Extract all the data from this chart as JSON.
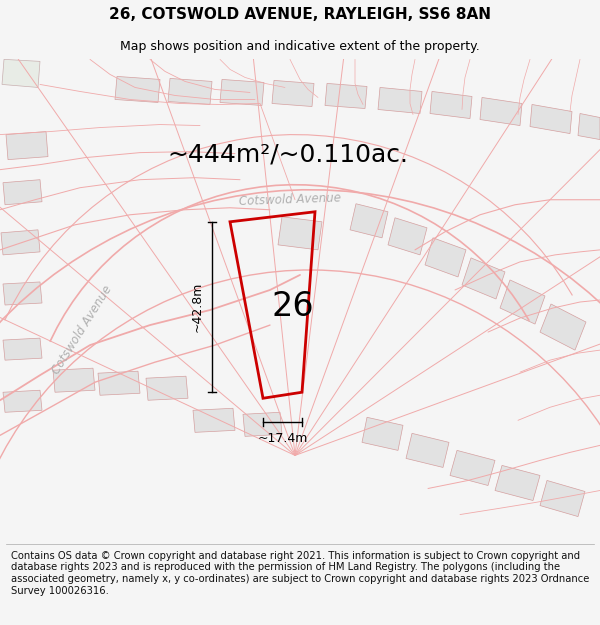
{
  "title": "26, COTSWOLD AVENUE, RAYLEIGH, SS6 8AN",
  "subtitle": "Map shows position and indicative extent of the property.",
  "area_label": "~444m²/~0.110ac.",
  "width_label": "~17.4m",
  "height_label": "~42.8m",
  "plot_number": "26",
  "road_label_top": "Cotswold Avenue",
  "road_label_left": "Cotswold Avenue",
  "footer_text": "Contains OS data © Crown copyright and database right 2021. This information is subject to Crown copyright and database rights 2023 and is reproduced with the permission of HM Land Registry. The polygons (including the associated geometry, namely x, y co-ordinates) are subject to Crown copyright and database rights 2023 Ordnance Survey 100026316.",
  "bg_color": "#f5f5f5",
  "map_bg": "#ffffff",
  "plot_color": "#cc0000",
  "road_line_color": "#f0aaaa",
  "building_fill": "#e2e2e2",
  "building_stroke": "#d4a0a0",
  "footer_bg": "#ffffff",
  "title_fontsize": 11,
  "subtitle_fontsize": 9,
  "area_fontsize": 18,
  "plot_num_fontsize": 24,
  "dim_fontsize": 9,
  "road_fontsize": 8.5,
  "footer_fontsize": 7.2
}
